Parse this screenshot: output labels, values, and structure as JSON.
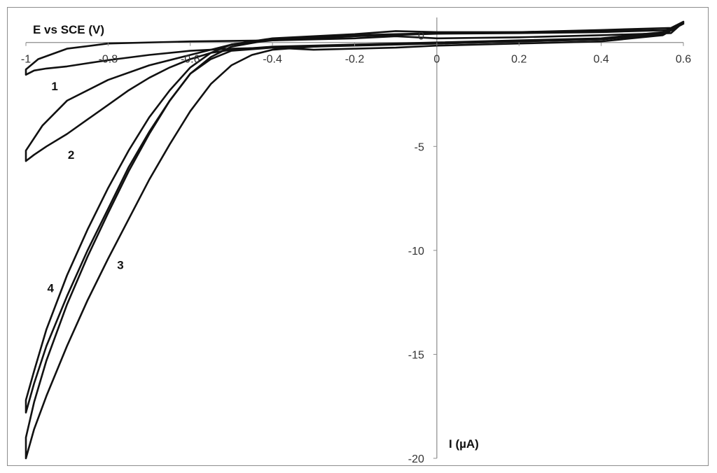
{
  "chart_data": {
    "type": "line",
    "title": "",
    "xlabel": "E vs SCE (V)",
    "ylabel": "I (µA)",
    "xlim": [
      -1,
      0.6
    ],
    "ylim": [
      -20,
      1
    ],
    "x_ticks": [
      -1,
      -0.8,
      -0.6,
      -0.4,
      -0.2,
      0,
      0.2,
      0.4,
      0.6
    ],
    "x_tick_labels": [
      "-1",
      "-0.8",
      "-0.6",
      "-0.4",
      "-0.2",
      "0",
      "0.2",
      "0.4",
      "0.6"
    ],
    "y_ticks": [
      0,
      -5,
      -10,
      -15,
      -20
    ],
    "y_tick_labels": [
      "0",
      "-5",
      "-10",
      "-15",
      "-20"
    ],
    "grid": false,
    "legend": "none",
    "annotations": [
      {
        "text": "1",
        "x": -0.93,
        "y": -2.3
      },
      {
        "text": "2",
        "x": -0.89,
        "y": -5.6
      },
      {
        "text": "3",
        "x": -0.77,
        "y": -10.9
      },
      {
        "text": "4",
        "x": -0.94,
        "y": -12.0
      }
    ],
    "series": [
      {
        "label": "1",
        "points": [
          [
            -1,
            -1.55
          ],
          [
            -0.98,
            -1.35
          ],
          [
            -0.95,
            -1.25
          ],
          [
            -0.9,
            -1.15
          ],
          [
            -0.85,
            -1.0
          ],
          [
            -0.8,
            -0.85
          ],
          [
            -0.7,
            -0.6
          ],
          [
            -0.6,
            -0.4
          ],
          [
            -0.5,
            -0.3
          ],
          [
            -0.4,
            -0.25
          ],
          [
            -0.3,
            -0.35
          ],
          [
            -0.2,
            -0.3
          ],
          [
            -0.1,
            -0.25
          ],
          [
            0,
            -0.15
          ],
          [
            0.2,
            -0.05
          ],
          [
            0.4,
            0.05
          ],
          [
            0.55,
            0.35
          ],
          [
            0.59,
            0.8
          ],
          [
            0.57,
            0.45
          ],
          [
            0.4,
            0.35
          ],
          [
            0.2,
            0.25
          ],
          [
            0,
            0.2
          ],
          [
            -0.1,
            0.3
          ],
          [
            -0.2,
            0.2
          ],
          [
            -0.4,
            0.1
          ],
          [
            -0.6,
            0.05
          ],
          [
            -0.8,
            -0.05
          ],
          [
            -0.9,
            -0.3
          ],
          [
            -0.97,
            -0.8
          ],
          [
            -1,
            -1.3
          ],
          [
            -1,
            -1.55
          ]
        ]
      },
      {
        "label": "2",
        "points": [
          [
            -1,
            -5.7
          ],
          [
            -0.98,
            -5.4
          ],
          [
            -0.95,
            -5.0
          ],
          [
            -0.9,
            -4.4
          ],
          [
            -0.85,
            -3.7
          ],
          [
            -0.8,
            -3.0
          ],
          [
            -0.75,
            -2.3
          ],
          [
            -0.7,
            -1.7
          ],
          [
            -0.65,
            -1.2
          ],
          [
            -0.6,
            -0.8
          ],
          [
            -0.55,
            -0.5
          ],
          [
            -0.5,
            -0.35
          ],
          [
            -0.4,
            -0.2
          ],
          [
            -0.2,
            -0.1
          ],
          [
            0,
            -0.05
          ],
          [
            0.2,
            0.05
          ],
          [
            0.4,
            0.15
          ],
          [
            0.55,
            0.4
          ],
          [
            0.6,
            0.95
          ],
          [
            0.57,
            0.6
          ],
          [
            0.4,
            0.5
          ],
          [
            0.2,
            0.45
          ],
          [
            0,
            0.42
          ],
          [
            -0.2,
            0.3
          ],
          [
            -0.4,
            0.1
          ],
          [
            -0.5,
            -0.1
          ],
          [
            -0.6,
            -0.6
          ],
          [
            -0.7,
            -1.1
          ],
          [
            -0.8,
            -1.8
          ],
          [
            -0.9,
            -2.8
          ],
          [
            -0.96,
            -4.0
          ],
          [
            -1,
            -5.2
          ],
          [
            -1,
            -5.7
          ]
        ]
      },
      {
        "label": "3",
        "points": [
          [
            -1,
            -20.0
          ],
          [
            -0.98,
            -18.6
          ],
          [
            -0.95,
            -17.0
          ],
          [
            -0.9,
            -14.6
          ],
          [
            -0.85,
            -12.4
          ],
          [
            -0.8,
            -10.4
          ],
          [
            -0.75,
            -8.5
          ],
          [
            -0.7,
            -6.6
          ],
          [
            -0.65,
            -4.9
          ],
          [
            -0.6,
            -3.3
          ],
          [
            -0.55,
            -2.0
          ],
          [
            -0.5,
            -1.1
          ],
          [
            -0.45,
            -0.6
          ],
          [
            -0.4,
            -0.35
          ],
          [
            -0.3,
            -0.2
          ],
          [
            -0.2,
            -0.1
          ],
          [
            0,
            0.0
          ],
          [
            0.2,
            0.1
          ],
          [
            0.4,
            0.2
          ],
          [
            0.55,
            0.5
          ],
          [
            0.6,
            1.0
          ],
          [
            0.57,
            0.7
          ],
          [
            0.4,
            0.6
          ],
          [
            0.2,
            0.5
          ],
          [
            0,
            0.45
          ],
          [
            -0.2,
            0.35
          ],
          [
            -0.4,
            0.15
          ],
          [
            -0.5,
            -0.2
          ],
          [
            -0.55,
            -0.7
          ],
          [
            -0.6,
            -1.5
          ],
          [
            -0.65,
            -2.8
          ],
          [
            -0.7,
            -4.4
          ],
          [
            -0.75,
            -6.2
          ],
          [
            -0.8,
            -8.2
          ],
          [
            -0.85,
            -10.3
          ],
          [
            -0.9,
            -12.6
          ],
          [
            -0.95,
            -15.3
          ],
          [
            -0.98,
            -17.3
          ],
          [
            -1,
            -19.0
          ],
          [
            -1,
            -20.0
          ]
        ]
      },
      {
        "label": "4",
        "points": [
          [
            -1,
            -17.8
          ],
          [
            -0.98,
            -16.4
          ],
          [
            -0.95,
            -14.6
          ],
          [
            -0.9,
            -12.2
          ],
          [
            -0.85,
            -10.0
          ],
          [
            -0.8,
            -8.0
          ],
          [
            -0.75,
            -6.0
          ],
          [
            -0.7,
            -4.3
          ],
          [
            -0.65,
            -2.8
          ],
          [
            -0.6,
            -1.5
          ],
          [
            -0.55,
            -0.8
          ],
          [
            -0.5,
            -0.4
          ],
          [
            -0.4,
            -0.25
          ],
          [
            -0.2,
            -0.15
          ],
          [
            0,
            -0.05
          ],
          [
            0.2,
            0.05
          ],
          [
            0.4,
            0.15
          ],
          [
            0.55,
            0.4
          ],
          [
            0.6,
            0.9
          ],
          [
            0.57,
            0.6
          ],
          [
            0.4,
            0.55
          ],
          [
            0.2,
            0.5
          ],
          [
            0,
            0.5
          ],
          [
            -0.1,
            0.55
          ],
          [
            -0.2,
            0.4
          ],
          [
            -0.4,
            0.2
          ],
          [
            -0.5,
            -0.1
          ],
          [
            -0.55,
            -0.5
          ],
          [
            -0.6,
            -1.2
          ],
          [
            -0.65,
            -2.3
          ],
          [
            -0.7,
            -3.6
          ],
          [
            -0.75,
            -5.2
          ],
          [
            -0.8,
            -7.0
          ],
          [
            -0.85,
            -9.0
          ],
          [
            -0.9,
            -11.2
          ],
          [
            -0.95,
            -13.8
          ],
          [
            -0.98,
            -15.8
          ],
          [
            -1,
            -17.2
          ],
          [
            -1,
            -17.8
          ]
        ]
      }
    ]
  }
}
